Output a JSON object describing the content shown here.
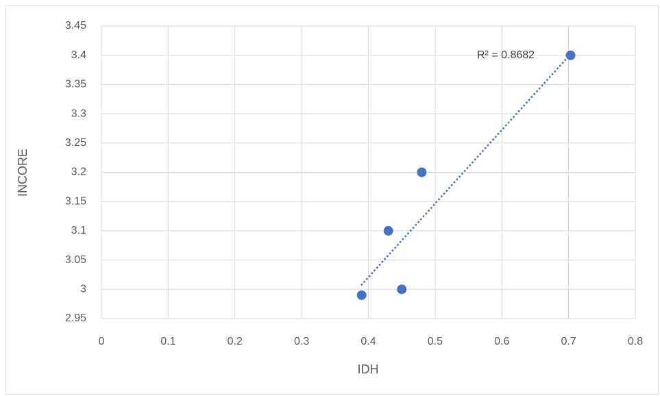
{
  "chart_data": {
    "type": "scatter",
    "title": "",
    "xlabel": "IDH",
    "ylabel": "INCORE",
    "xlim": [
      0,
      0.8
    ],
    "ylim": [
      2.95,
      3.45
    ],
    "x_ticks": [
      "0",
      "0.1",
      "0.2",
      "0.3",
      "0.4",
      "0.5",
      "0.6",
      "0.7",
      "0.8"
    ],
    "y_ticks": [
      "2.95",
      "3",
      "3.05",
      "3.1",
      "3.15",
      "3.2",
      "3.25",
      "3.3",
      "3.35",
      "3.4",
      "3.45"
    ],
    "grid": true,
    "legend": "none",
    "series": [
      {
        "points": [
          {
            "x": 0.39,
            "y": 2.99
          },
          {
            "x": 0.43,
            "y": 3.1
          },
          {
            "x": 0.45,
            "y": 3.0
          },
          {
            "x": 0.48,
            "y": 3.2
          },
          {
            "x": 0.703,
            "y": 3.4
          }
        ],
        "color": "#4472c4"
      }
    ],
    "trendline": {
      "type": "linear",
      "style": "dotted",
      "color": "#4472c4",
      "label": "R² = 0.8682",
      "from": {
        "x": 0.39,
        "y": 3.008
      },
      "to": {
        "x": 0.703,
        "y": 3.402
      }
    }
  }
}
